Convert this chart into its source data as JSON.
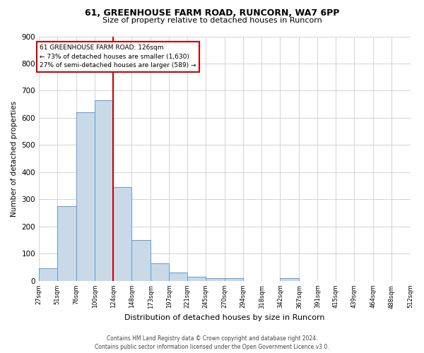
{
  "title1": "61, GREENHOUSE FARM ROAD, RUNCORN, WA7 6PP",
  "title2": "Size of property relative to detached houses in Runcorn",
  "xlabel": "Distribution of detached houses by size in Runcorn",
  "ylabel": "Number of detached properties",
  "footer1": "Contains HM Land Registry data © Crown copyright and database right 2024.",
  "footer2": "Contains public sector information licensed under the Open Government Licence v3.0.",
  "annotation_line1": "61 GREENHOUSE FARM ROAD: 126sqm",
  "annotation_line2": "← 73% of detached houses are smaller (1,630)",
  "annotation_line3": "27% of semi-detached houses are larger (589) →",
  "bin_edges": [
    27,
    51,
    76,
    100,
    124,
    148,
    173,
    197,
    221,
    245,
    270,
    294,
    318,
    342,
    367,
    391,
    415,
    439,
    464,
    488,
    512
  ],
  "bar_values": [
    45,
    275,
    620,
    665,
    345,
    150,
    65,
    30,
    15,
    10,
    10,
    0,
    0,
    10,
    0,
    0,
    0,
    0,
    0,
    0
  ],
  "bar_color": "#c9d9e8",
  "bar_edge_color": "#5b9bd5",
  "vline_color": "#cc0000",
  "vline_x": 124,
  "annotation_box_color": "#cc0000",
  "ylim": [
    0,
    900
  ],
  "yticks": [
    0,
    100,
    200,
    300,
    400,
    500,
    600,
    700,
    800,
    900
  ],
  "grid_color": "#cccccc",
  "background_color": "#ffffff",
  "title1_fontsize": 9,
  "title2_fontsize": 8,
  "ylabel_fontsize": 7.5,
  "xlabel_fontsize": 8,
  "ytick_fontsize": 7.5,
  "xtick_fontsize": 6,
  "footer_fontsize": 5.5,
  "annotation_fontsize": 6.5
}
